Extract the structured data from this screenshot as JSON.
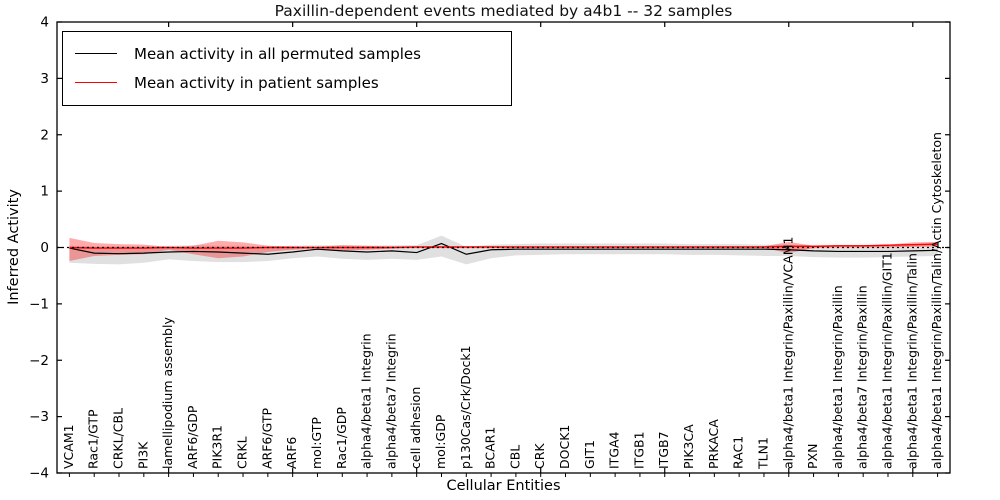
{
  "chart_data": {
    "type": "line",
    "title": "Paxillin-dependent events mediated by a4b1 -- 32 samples",
    "xlabel": "Cellular Entities",
    "ylabel": "Inferred Activity",
    "ylim": [
      -4,
      4
    ],
    "yticks": [
      -4,
      -3,
      -2,
      -1,
      0,
      1,
      2,
      3,
      4
    ],
    "x_major_tick_indices": [
      4,
      9,
      14,
      19,
      24,
      29,
      34
    ],
    "grid": false,
    "legend_position": "upper left",
    "background_color": "#ffffff",
    "axis_color": "#000000",
    "categories": [
      "VCAM1",
      "Rac1/GTP",
      "CRKL/CBL",
      "PI3K",
      "lamellipodium assembly",
      "ARF6/GDP",
      "PIK3R1",
      "CRKL",
      "ARF6/GTP",
      "ARF6",
      "mol:GTP",
      "Rac1/GDP",
      "alpha4/beta1 Integrin",
      "alpha4/beta7 Integrin",
      "cell adhesion",
      "mol:GDP",
      "p130Cas/Crk/Dock1",
      "BCAR1",
      "CBL",
      "CRK",
      "DOCK1",
      "GIT1",
      "ITGA4",
      "ITGB1",
      "ITGB7",
      "PIK3CA",
      "PRKACA",
      "RAC1",
      "TLN1",
      "alpha4/beta1 Integrin/Paxillin/VCAM1",
      "PXN",
      "alpha4/beta1 Integrin/Paxillin",
      "alpha4/beta7 Integrin/Paxillin",
      "alpha4/beta1 Integrin/Paxillin/GIT1",
      "alpha4/beta1 Integrin/Paxillin/Talin",
      "alpha4/beta1 Integrin/Paxillin/Talin/Actin Cytoskeleton"
    ],
    "series": [
      {
        "name": "Mean activity in all permuted samples",
        "color": "#000000",
        "line_width": 1.2,
        "values": [
          -0.01,
          -0.1,
          -0.11,
          -0.1,
          -0.08,
          -0.07,
          -0.08,
          -0.1,
          -0.12,
          -0.08,
          -0.03,
          -0.06,
          -0.08,
          -0.06,
          -0.09,
          0.07,
          -0.12,
          -0.04,
          -0.03,
          -0.03,
          -0.03,
          -0.03,
          -0.03,
          -0.03,
          -0.03,
          -0.03,
          -0.03,
          -0.03,
          -0.03,
          -0.04,
          -0.06,
          -0.07,
          -0.07,
          -0.07,
          -0.06,
          -0.05
        ],
        "band": {
          "upper": [
            0.03,
            0.02,
            0.02,
            0.02,
            0.03,
            0.04,
            0.03,
            0.03,
            0.02,
            0.03,
            0.04,
            0.04,
            0.03,
            0.04,
            0.04,
            0.21,
            0.01,
            0.05,
            0.06,
            0.07,
            0.07,
            0.07,
            0.07,
            0.07,
            0.07,
            0.06,
            0.06,
            0.06,
            0.05,
            0.05,
            0.04,
            0.04,
            0.04,
            0.04,
            0.05,
            0.05
          ],
          "lower": [
            -0.27,
            -0.29,
            -0.3,
            -0.27,
            -0.21,
            -0.24,
            -0.26,
            -0.26,
            -0.24,
            -0.19,
            -0.16,
            -0.2,
            -0.22,
            -0.2,
            -0.22,
            -0.16,
            -0.3,
            -0.19,
            -0.14,
            -0.13,
            -0.12,
            -0.12,
            -0.12,
            -0.12,
            -0.12,
            -0.13,
            -0.13,
            -0.14,
            -0.15,
            -0.15,
            -0.17,
            -0.18,
            -0.18,
            -0.17,
            -0.16,
            -0.15
          ],
          "color": "#000000",
          "opacity": 0.12
        }
      },
      {
        "name": "Mean activity in patient samples",
        "color": "#ff0000",
        "line_width": 1.4,
        "values": [
          0.0,
          -0.01,
          -0.01,
          -0.01,
          0.0,
          -0.01,
          -0.01,
          -0.01,
          0.0,
          0.0,
          0.0,
          0.0,
          0.0,
          0.0,
          0.01,
          0.01,
          0.01,
          0.01,
          0.01,
          0.01,
          0.01,
          0.01,
          0.01,
          0.01,
          0.01,
          0.01,
          0.01,
          0.01,
          0.01,
          0.02,
          0.02,
          0.03,
          0.03,
          0.04,
          0.05,
          0.06
        ],
        "band": {
          "upper": [
            0.17,
            0.08,
            0.06,
            0.05,
            0.01,
            0.03,
            0.12,
            0.09,
            0.03,
            0.02,
            0.01,
            0.04,
            0.03,
            0.02,
            0.02,
            0.02,
            0.02,
            0.02,
            0.02,
            0.02,
            0.02,
            0.02,
            0.02,
            0.02,
            0.02,
            0.02,
            0.02,
            0.02,
            0.02,
            0.1,
            0.03,
            0.04,
            0.04,
            0.05,
            0.09,
            0.1
          ],
          "lower": [
            -0.24,
            -0.15,
            -0.13,
            -0.12,
            -0.04,
            -0.12,
            -0.19,
            -0.16,
            -0.08,
            -0.04,
            -0.02,
            -0.05,
            -0.04,
            -0.02,
            -0.01,
            -0.01,
            -0.01,
            -0.01,
            -0.01,
            -0.01,
            -0.01,
            -0.01,
            -0.01,
            -0.01,
            -0.01,
            -0.01,
            -0.01,
            -0.01,
            -0.01,
            -0.1,
            -0.01,
            0.0,
            0.0,
            0.0,
            0.01,
            0.02
          ],
          "color": "#ff0000",
          "opacity": 0.33
        }
      }
    ],
    "reference_line": {
      "y": 0,
      "color": "#000000",
      "style": "dashed"
    }
  }
}
